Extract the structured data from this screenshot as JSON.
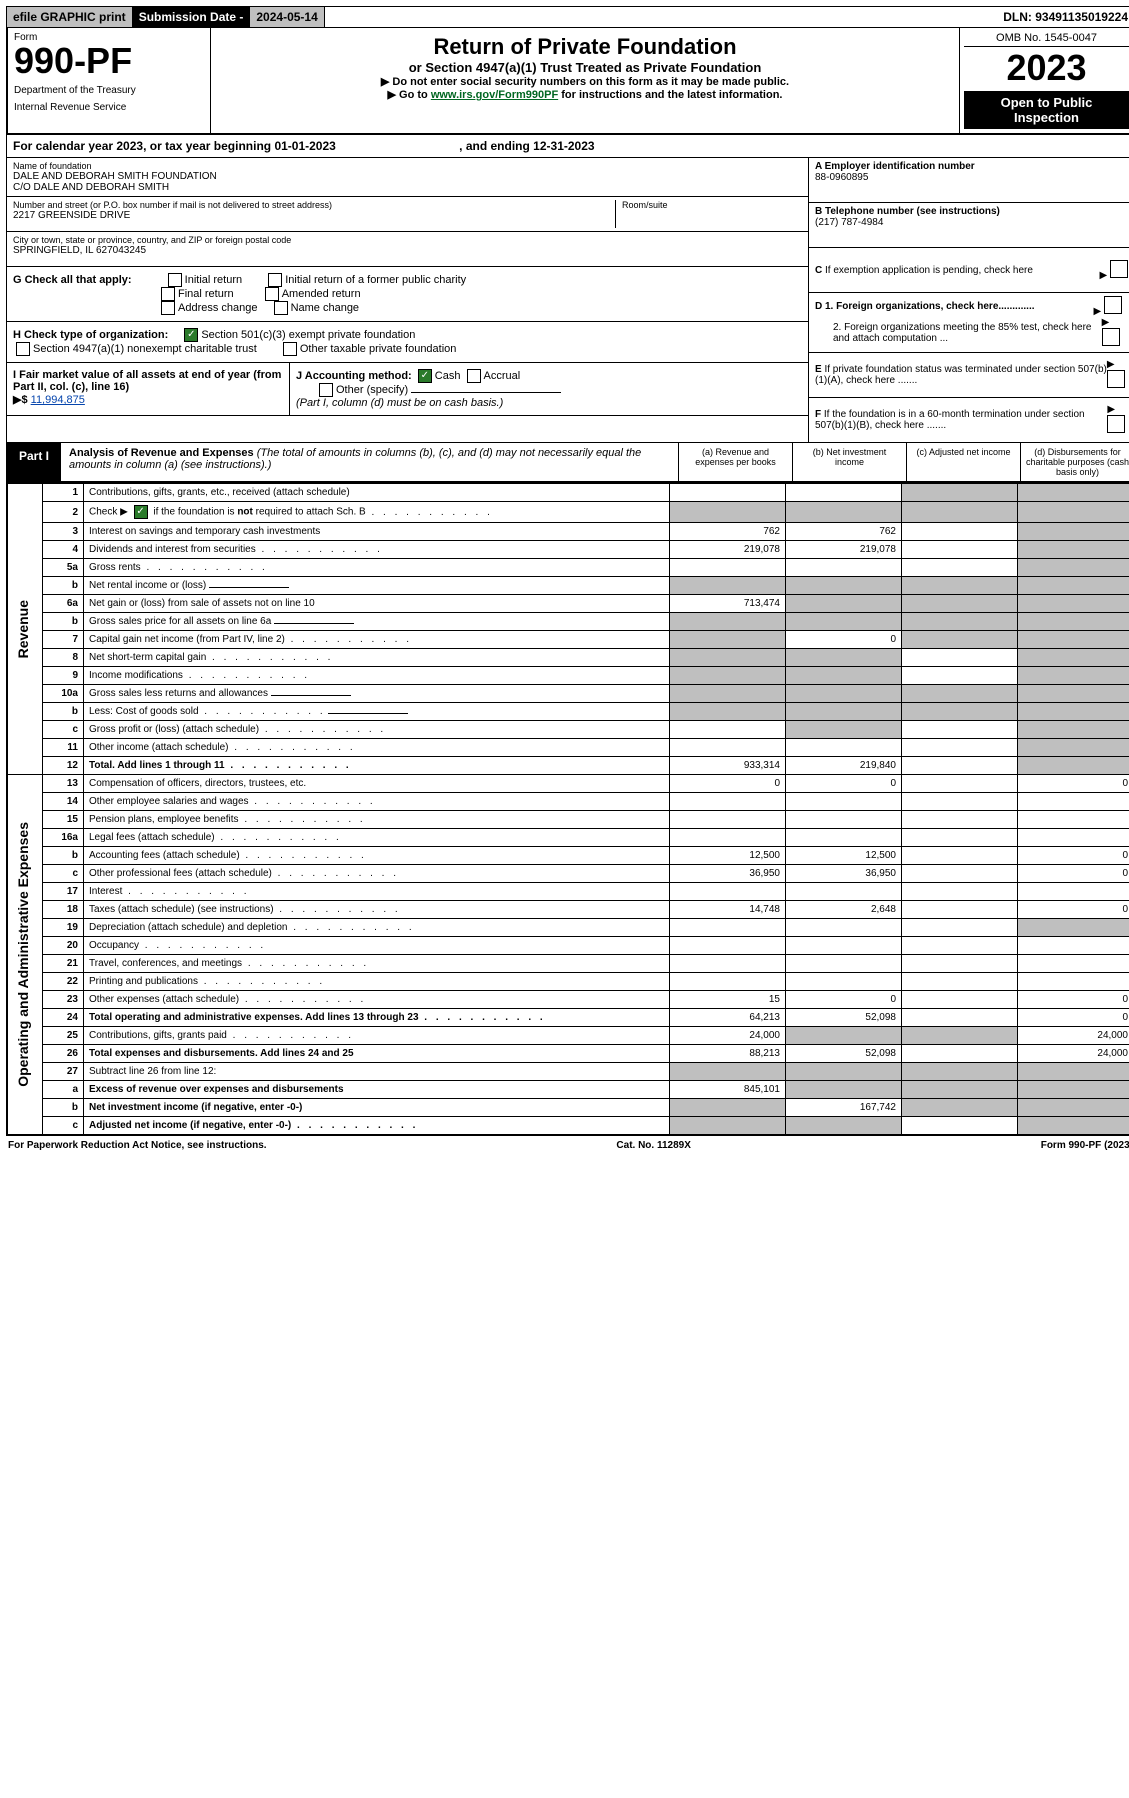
{
  "topbar": {
    "efile": "efile GRAPHIC print",
    "subdate_label": "Submission Date - ",
    "subdate": "2024-05-14",
    "dln_label": "DLN: ",
    "dln": "93491135019224"
  },
  "header": {
    "form_label": "Form",
    "form_no": "990-PF",
    "dept1": "Department of the Treasury",
    "dept2": "Internal Revenue Service",
    "title": "Return of Private Foundation",
    "subtitle": "or Section 4947(a)(1) Trust Treated as Private Foundation",
    "instr1": "▶ Do not enter social security numbers on this form as it may be made public.",
    "instr2_pre": "▶ Go to ",
    "instr2_link": "www.irs.gov/Form990PF",
    "instr2_post": " for instructions and the latest information.",
    "omb": "OMB No. 1545-0047",
    "year": "2023",
    "open_pub": "Open to Public Inspection"
  },
  "calyear": {
    "text": "For calendar year 2023, or tax year beginning 01-01-2023",
    "ending": ", and ending 12-31-2023"
  },
  "foundation": {
    "name_label": "Name of foundation",
    "name1": "DALE AND DEBORAH SMITH FOUNDATION",
    "name2": "C/O DALE AND DEBORAH SMITH",
    "addr_label": "Number and street (or P.O. box number if mail is not delivered to street address)",
    "room_label": "Room/suite",
    "addr": "2217 GREENSIDE DRIVE",
    "city_label": "City or town, state or province, country, and ZIP or foreign postal code",
    "city": "SPRINGFIELD, IL  627043245"
  },
  "ein": {
    "label": "A Employer identification number",
    "value": "88-0960895"
  },
  "phone": {
    "label": "B Telephone number (see instructions)",
    "value": "(217) 787-4984"
  },
  "boxC": "C If exemption application is pending, check here",
  "boxD1": "D 1. Foreign organizations, check here.............",
  "boxD2": "2. Foreign organizations meeting the 85% test, check here and attach computation ...",
  "boxE": "E If private foundation status was terminated under section 507(b)(1)(A), check here .......",
  "boxF": "F If the foundation is in a 60-month termination under section 507(b)(1)(B), check here .......",
  "checkG": {
    "label": "G Check all that apply:",
    "opts": [
      "Initial return",
      "Initial return of a former public charity",
      "Final return",
      "Amended return",
      "Address change",
      "Name change"
    ]
  },
  "checkH": {
    "label": "H Check type of organization:",
    "opt1": "Section 501(c)(3) exempt private foundation",
    "opt2": "Section 4947(a)(1) nonexempt charitable trust",
    "opt3": "Other taxable private foundation"
  },
  "boxI": {
    "label": "I Fair market value of all assets at end of year (from Part II, col. (c), line 16)",
    "value": "11,994,875"
  },
  "boxJ": {
    "label": "J Accounting method:",
    "cash": "Cash",
    "accrual": "Accrual",
    "other": "Other (specify)",
    "note": "(Part I, column (d) must be on cash basis.)"
  },
  "part1": {
    "label": "Part I",
    "title": "Analysis of Revenue and Expenses",
    "note": "(The total of amounts in columns (b), (c), and (d) may not necessarily equal the amounts in column (a) (see instructions).)",
    "col_a": "(a) Revenue and expenses per books",
    "col_b": "(b) Net investment income",
    "col_c": "(c) Adjusted net income",
    "col_d": "(d) Disbursements for charitable purposes (cash basis only)"
  },
  "side_labels": {
    "revenue": "Revenue",
    "opex": "Operating and Administrative Expenses"
  },
  "rows": [
    {
      "n": "1",
      "d": "Contributions, gifts, grants, etc., received (attach schedule)",
      "a": "",
      "b": "",
      "c": "s",
      "ds": "s"
    },
    {
      "n": "2",
      "d": "Check ▶ ☑ if the foundation is not required to attach Sch. B",
      "a": "s",
      "b": "s",
      "c": "s",
      "ds": "s",
      "dots": true,
      "chk": true
    },
    {
      "n": "3",
      "d": "Interest on savings and temporary cash investments",
      "a": "762",
      "b": "762",
      "c": "",
      "ds": "s"
    },
    {
      "n": "4",
      "d": "Dividends and interest from securities",
      "a": "219,078",
      "b": "219,078",
      "c": "",
      "ds": "s",
      "dots": true
    },
    {
      "n": "5a",
      "d": "Gross rents",
      "a": "",
      "b": "",
      "c": "",
      "ds": "s",
      "dots": true
    },
    {
      "n": "b",
      "d": "Net rental income or (loss)",
      "a": "s",
      "b": "s",
      "c": "s",
      "ds": "s",
      "inset": true
    },
    {
      "n": "6a",
      "d": "Net gain or (loss) from sale of assets not on line 10",
      "a": "713,474",
      "b": "s",
      "c": "s",
      "ds": "s"
    },
    {
      "n": "b",
      "d": "Gross sales price for all assets on line 6a",
      "a": "s",
      "b": "s",
      "c": "s",
      "ds": "s",
      "inset": true
    },
    {
      "n": "7",
      "d": "Capital gain net income (from Part IV, line 2)",
      "a": "s",
      "b": "0",
      "c": "s",
      "ds": "s",
      "dots": true
    },
    {
      "n": "8",
      "d": "Net short-term capital gain",
      "a": "s",
      "b": "s",
      "c": "",
      "ds": "s",
      "dots": true
    },
    {
      "n": "9",
      "d": "Income modifications",
      "a": "s",
      "b": "s",
      "c": "",
      "ds": "s",
      "dots": true
    },
    {
      "n": "10a",
      "d": "Gross sales less returns and allowances",
      "a": "s",
      "b": "s",
      "c": "s",
      "ds": "s",
      "inset": true
    },
    {
      "n": "b",
      "d": "Less: Cost of goods sold",
      "a": "s",
      "b": "s",
      "c": "s",
      "ds": "s",
      "inset": true,
      "dots": true
    },
    {
      "n": "c",
      "d": "Gross profit or (loss) (attach schedule)",
      "a": "",
      "b": "s",
      "c": "",
      "ds": "s",
      "dots": true
    },
    {
      "n": "11",
      "d": "Other income (attach schedule)",
      "a": "",
      "b": "",
      "c": "",
      "ds": "s",
      "dots": true
    },
    {
      "n": "12",
      "d": "Total. Add lines 1 through 11",
      "a": "933,314",
      "b": "219,840",
      "c": "",
      "ds": "s",
      "bold": true,
      "dots": true
    },
    {
      "n": "13",
      "d": "Compensation of officers, directors, trustees, etc.",
      "a": "0",
      "b": "0",
      "c": "",
      "ds": "0"
    },
    {
      "n": "14",
      "d": "Other employee salaries and wages",
      "a": "",
      "b": "",
      "c": "",
      "ds": "",
      "dots": true
    },
    {
      "n": "15",
      "d": "Pension plans, employee benefits",
      "a": "",
      "b": "",
      "c": "",
      "ds": "",
      "dots": true
    },
    {
      "n": "16a",
      "d": "Legal fees (attach schedule)",
      "a": "",
      "b": "",
      "c": "",
      "ds": "",
      "dots": true
    },
    {
      "n": "b",
      "d": "Accounting fees (attach schedule)",
      "a": "12,500",
      "b": "12,500",
      "c": "",
      "ds": "0",
      "dots": true
    },
    {
      "n": "c",
      "d": "Other professional fees (attach schedule)",
      "a": "36,950",
      "b": "36,950",
      "c": "",
      "ds": "0",
      "dots": true
    },
    {
      "n": "17",
      "d": "Interest",
      "a": "",
      "b": "",
      "c": "",
      "ds": "",
      "dots": true
    },
    {
      "n": "18",
      "d": "Taxes (attach schedule) (see instructions)",
      "a": "14,748",
      "b": "2,648",
      "c": "",
      "ds": "0",
      "dots": true
    },
    {
      "n": "19",
      "d": "Depreciation (attach schedule) and depletion",
      "a": "",
      "b": "",
      "c": "",
      "ds": "s",
      "dots": true
    },
    {
      "n": "20",
      "d": "Occupancy",
      "a": "",
      "b": "",
      "c": "",
      "ds": "",
      "dots": true
    },
    {
      "n": "21",
      "d": "Travel, conferences, and meetings",
      "a": "",
      "b": "",
      "c": "",
      "ds": "",
      "dots": true
    },
    {
      "n": "22",
      "d": "Printing and publications",
      "a": "",
      "b": "",
      "c": "",
      "ds": "",
      "dots": true
    },
    {
      "n": "23",
      "d": "Other expenses (attach schedule)",
      "a": "15",
      "b": "0",
      "c": "",
      "ds": "0",
      "dots": true
    },
    {
      "n": "24",
      "d": "Total operating and administrative expenses. Add lines 13 through 23",
      "a": "64,213",
      "b": "52,098",
      "c": "",
      "ds": "0",
      "bold": true,
      "dots": true
    },
    {
      "n": "25",
      "d": "Contributions, gifts, grants paid",
      "a": "24,000",
      "b": "s",
      "c": "s",
      "ds": "24,000",
      "dots": true
    },
    {
      "n": "26",
      "d": "Total expenses and disbursements. Add lines 24 and 25",
      "a": "88,213",
      "b": "52,098",
      "c": "",
      "ds": "24,000",
      "bold": true
    },
    {
      "n": "27",
      "d": "Subtract line 26 from line 12:",
      "a": "s",
      "b": "s",
      "c": "s",
      "ds": "s"
    },
    {
      "n": "a",
      "d": "Excess of revenue over expenses and disbursements",
      "a": "845,101",
      "b": "s",
      "c": "s",
      "ds": "s",
      "bold": true
    },
    {
      "n": "b",
      "d": "Net investment income (if negative, enter -0-)",
      "a": "s",
      "b": "167,742",
      "c": "s",
      "ds": "s",
      "bold": true
    },
    {
      "n": "c",
      "d": "Adjusted net income (if negative, enter -0-)",
      "a": "s",
      "b": "s",
      "c": "",
      "ds": "s",
      "bold": true,
      "dots": true
    }
  ],
  "footer": {
    "left": "For Paperwork Reduction Act Notice, see instructions.",
    "center": "Cat. No. 11289X",
    "right": "Form 990-PF (2023)"
  }
}
